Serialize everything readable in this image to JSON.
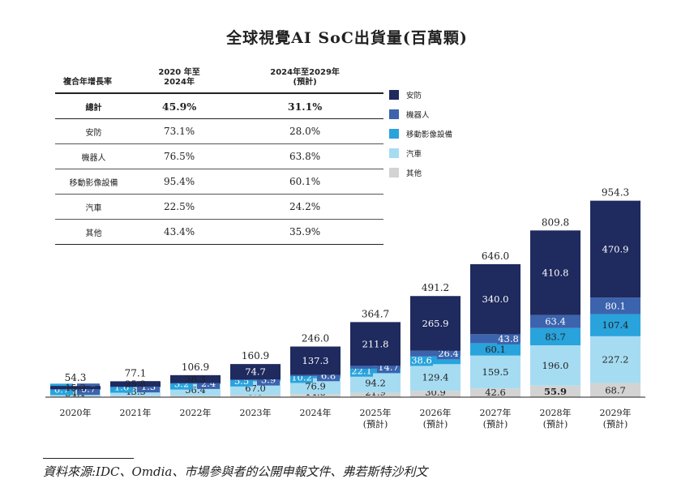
{
  "title": "全球視覺AI SoC出貨量(百萬顆)",
  "cagr_table": {
    "headers": [
      "複合年增長率",
      "2020 年至\n2024年",
      "2024年至2029年\n(預計)"
    ],
    "rows": [
      {
        "label": "總計",
        "v1": "45.9%",
        "v2": "31.1%"
      },
      {
        "label": "安防",
        "v1": "73.1%",
        "v2": "28.0%"
      },
      {
        "label": "機器人",
        "v1": "76.5%",
        "v2": "63.8%"
      },
      {
        "label": "移動影像設備",
        "v1": "95.4%",
        "v2": "60.1%"
      },
      {
        "label": "汽車",
        "v1": "22.5%",
        "v2": "24.2%"
      },
      {
        "label": "其他",
        "v1": "43.4%",
        "v2": "35.9%"
      }
    ]
  },
  "legend": [
    {
      "name": "安防",
      "color": "#1f2a5e"
    },
    {
      "name": "機器人",
      "color": "#3c63ad"
    },
    {
      "name": "移動影像設備",
      "color": "#29a3dc"
    },
    {
      "name": "汽車",
      "color": "#a6dcf2"
    },
    {
      "name": "其他",
      "color": "#d3d3d3"
    }
  ],
  "source": "資料來源:IDC、Omdia、市場參與者的公開申報文件、弗若斯特沙利文",
  "chart_data": {
    "type": "bar",
    "stacked": true,
    "title": "全球視覺AI SoC出貨量(百萬顆)",
    "categories": [
      "2020年",
      "2021年",
      "2022年",
      "2023年",
      "2024年",
      "2025年\n(預計)",
      "2026年\n(預計)",
      "2027年\n(預計)",
      "2028年\n(預計)",
      "2029年\n(預計)"
    ],
    "totals": [
      54.3,
      77.1,
      106.9,
      160.9,
      246.0,
      364.7,
      491.2,
      646.0,
      809.8,
      954.3
    ],
    "series": [
      {
        "name": "其他",
        "color": "#d3d3d3",
        "values": [
          3.5,
          4.9,
          6.6,
          9.8,
          14.8,
          21.9,
          30.9,
          42.6,
          55.9,
          68.7
        ],
        "labels": [
          "3.5",
          "4.9",
          "6.6",
          "9.8",
          "14.8",
          "21.9",
          "30.9",
          "42.6",
          "55.9",
          "68.7"
        ]
      },
      {
        "name": "汽車",
        "color": "#a6dcf2",
        "values": [
          34.1,
          43.5,
          56.4,
          67.0,
          76.9,
          94.2,
          129.4,
          159.5,
          196.0,
          227.2
        ],
        "labels": [
          "34.1",
          "43.5",
          "56.4",
          "67.0",
          "76.9",
          "94.2",
          "129.4",
          "159.5",
          "196.0",
          "227.2"
        ]
      },
      {
        "name": "移動影像設備",
        "color": "#29a3dc",
        "values": [
          0.7,
          1.6,
          3.2,
          5.5,
          10.2,
          22.1,
          38.6,
          60.1,
          83.7,
          107.4
        ],
        "labels": [
          "0.7",
          "1.6",
          "3.2",
          "5.5",
          "10.2",
          "22.1",
          "38.6",
          "60.1",
          "83.7",
          "107.4"
        ]
      },
      {
        "name": "機器人",
        "color": "#3c63ad",
        "values": [
          0.7,
          1.3,
          2.4,
          3.9,
          6.8,
          14.7,
          26.4,
          43.8,
          63.4,
          80.1
        ],
        "labels": [
          "0.7",
          "1.3",
          "2.4",
          "3.9",
          "6.8",
          "14.7",
          "26.4",
          "43.8",
          "63.4",
          "80.1"
        ]
      },
      {
        "name": "安防",
        "color": "#1f2a5e",
        "values": [
          15.3,
          25.8,
          38.3,
          74.7,
          137.3,
          211.8,
          265.9,
          340.0,
          410.8,
          470.9
        ],
        "labels": [
          "15.3",
          "25.8",
          "38.3",
          "74.7",
          "137.3",
          "211.8",
          "265.9",
          "340.0",
          "410.8",
          "470.9"
        ]
      }
    ],
    "ylim": [
      0,
      1000
    ]
  }
}
